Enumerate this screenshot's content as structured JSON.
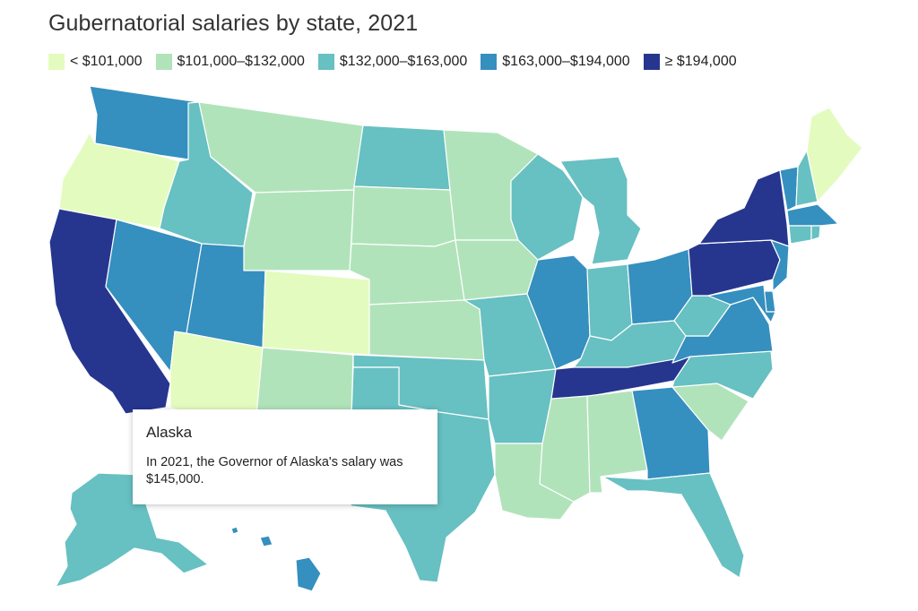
{
  "title": "Gubernatorial salaries by state, 2021",
  "legend": [
    {
      "label": "< $101,000",
      "color": "#e4fbbf"
    },
    {
      "label": "$101,000–$132,000",
      "color": "#b1e3bb"
    },
    {
      "label": "$132,000–$163,000",
      "color": "#67c0c2"
    },
    {
      "label": "$163,000–$194,000",
      "color": "#358fbf"
    },
    {
      "label": "≥ $194,000",
      "color": "#26368f"
    }
  ],
  "tooltip": {
    "title": "Alaska",
    "body": "In 2021, the Governor of Alaska's salary was $145,000."
  },
  "states": {
    "WA": 3,
    "OR": 0,
    "CA": 4,
    "NV": 3,
    "ID": 2,
    "MT": 1,
    "WY": 1,
    "UT": 3,
    "AZ": 0,
    "CO": 0,
    "NM": 1,
    "ND": 2,
    "SD": 1,
    "NE": 1,
    "KS": 1,
    "OK": 2,
    "TX": 2,
    "MN": 1,
    "IA": 1,
    "MO": 2,
    "AR": 2,
    "LA": 1,
    "WI": 2,
    "IL": 3,
    "MI": 2,
    "IN": 2,
    "OH": 3,
    "KY": 2,
    "TN": 4,
    "MS": 1,
    "AL": 1,
    "GA": 3,
    "FL": 2,
    "SC": 1,
    "NC": 2,
    "VA": 3,
    "WV": 2,
    "PA": 4,
    "NY": 4,
    "VT": 3,
    "NH": 2,
    "ME": 0,
    "MA": 3,
    "CT": 2,
    "RI": 2,
    "NJ": 3,
    "DE": 3,
    "MD": 3,
    "AK": 2,
    "HI": 3
  }
}
